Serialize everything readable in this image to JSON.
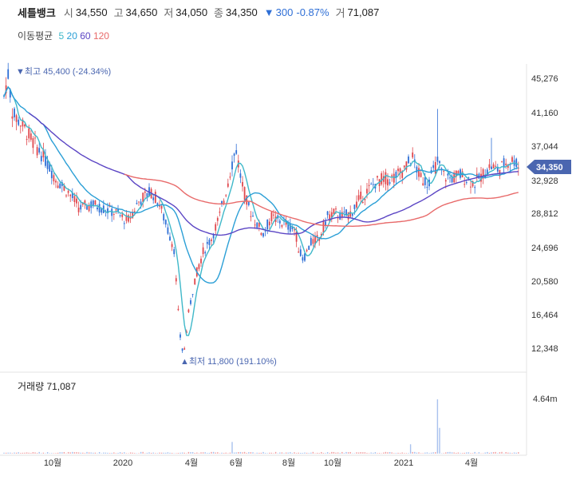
{
  "header": {
    "name": "세틀뱅크",
    "open_label": "시",
    "open": "34,550",
    "high_label": "고",
    "high": "34,650",
    "low_label": "저",
    "low": "34,050",
    "close_label": "종",
    "close": "34,350",
    "change_arrow": "▼",
    "change": "300",
    "change_pct": "-0.87%",
    "volume_label": "거",
    "volume": "71,087"
  },
  "moving_average": {
    "label": "이동평균",
    "periods": [
      {
        "label": "5",
        "color": "#3fb8c9"
      },
      {
        "label": "20",
        "color": "#2b9fd6"
      },
      {
        "label": "60",
        "color": "#5b45c4"
      },
      {
        "label": "120",
        "color": "#e86a6a"
      }
    ]
  },
  "chart_data": {
    "type": "candlestick",
    "price_axis": {
      "ticks": [
        "45,276",
        "41,160",
        "37,044",
        "32,928",
        "28,812",
        "24,696",
        "20,580",
        "16,464",
        "12,348"
      ],
      "range": [
        11000,
        46500
      ]
    },
    "current_price_label": "34,350",
    "max_annotation": "▼최고 45,400 (-24.34%)",
    "min_annotation": "▲최저 11,800 (191.10%)",
    "volume_label": "거래량 71,087",
    "volume_axis_tick": "4.64m",
    "x_ticks": [
      "10월",
      "2020",
      "4월",
      "6월",
      "8월",
      "10월",
      "2021",
      "4월"
    ],
    "price_anchors": [
      [
        0,
        41000
      ],
      [
        6,
        43000
      ],
      [
        10,
        45400
      ],
      [
        16,
        40500
      ],
      [
        22,
        40000
      ],
      [
        30,
        39000
      ],
      [
        40,
        37500
      ],
      [
        55,
        35500
      ],
      [
        70,
        33000
      ],
      [
        85,
        31500
      ],
      [
        100,
        29500
      ],
      [
        115,
        30000
      ],
      [
        130,
        29500
      ],
      [
        145,
        29000
      ],
      [
        160,
        28000
      ],
      [
        175,
        30500
      ],
      [
        190,
        31500
      ],
      [
        200,
        30000
      ],
      [
        210,
        27000
      ],
      [
        218,
        25000
      ],
      [
        225,
        15000
      ],
      [
        230,
        12000
      ],
      [
        236,
        17000
      ],
      [
        245,
        21500
      ],
      [
        255,
        24500
      ],
      [
        265,
        26000
      ],
      [
        275,
        28500
      ],
      [
        283,
        31500
      ],
      [
        290,
        34500
      ],
      [
        296,
        36500
      ],
      [
        302,
        33000
      ],
      [
        310,
        30000
      ],
      [
        320,
        28000
      ],
      [
        330,
        26500
      ],
      [
        340,
        28500
      ],
      [
        350,
        28000
      ],
      [
        360,
        27500
      ],
      [
        370,
        27000
      ],
      [
        375,
        24500
      ],
      [
        380,
        23500
      ],
      [
        390,
        25500
      ],
      [
        400,
        26000
      ],
      [
        410,
        28500
      ],
      [
        420,
        29000
      ],
      [
        430,
        28500
      ],
      [
        440,
        29000
      ],
      [
        450,
        30500
      ],
      [
        460,
        31500
      ],
      [
        470,
        32500
      ],
      [
        480,
        33000
      ],
      [
        490,
        33000
      ],
      [
        500,
        33500
      ],
      [
        510,
        34500
      ],
      [
        517,
        35500
      ],
      [
        525,
        33500
      ],
      [
        535,
        32500
      ],
      [
        542,
        33500
      ],
      [
        548,
        35000
      ],
      [
        555,
        33500
      ],
      [
        565,
        33000
      ],
      [
        575,
        33500
      ],
      [
        585,
        33000
      ],
      [
        595,
        32500
      ],
      [
        605,
        33500
      ],
      [
        615,
        34500
      ],
      [
        625,
        34000
      ],
      [
        635,
        35000
      ],
      [
        645,
        35200
      ],
      [
        650,
        34350
      ]
    ],
    "spikes": [
      {
        "x": 549,
        "high": 41200
      },
      {
        "x": 516,
        "high": 36700
      },
      {
        "x": 615,
        "high": 37800
      },
      {
        "x": 296,
        "high": 37100
      }
    ],
    "volume_spikes": [
      {
        "x": 549,
        "vol": 4.64
      },
      {
        "x": 292,
        "vol": 1.0
      },
      {
        "x": 515,
        "vol": 0.8
      },
      {
        "x": 550,
        "vol": 2.2
      }
    ]
  }
}
